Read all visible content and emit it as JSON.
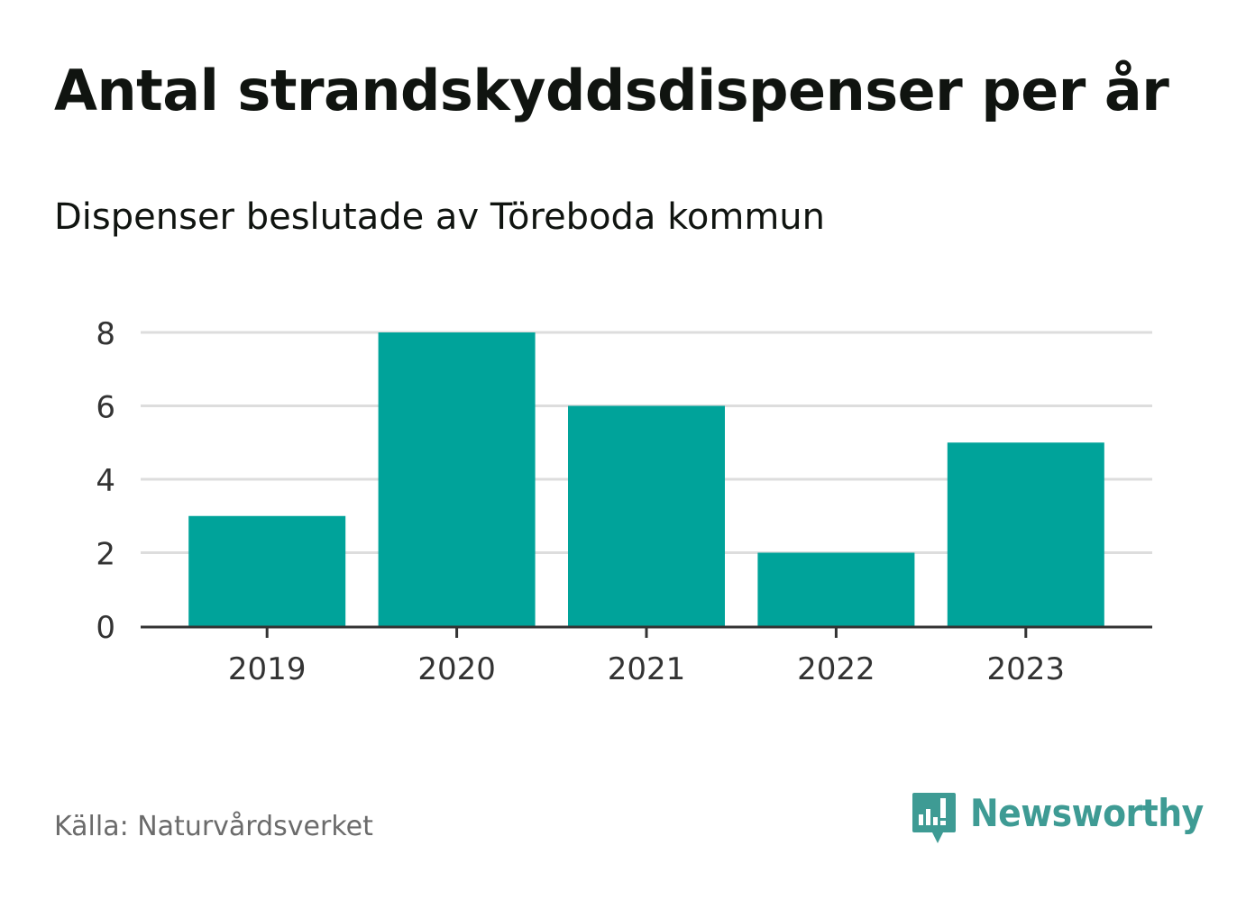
{
  "chart_data": {
    "type": "bar",
    "title": "Antal strandskyddsdispenser per år",
    "subtitle": "Dispenser beslutade av Töreboda kommun",
    "categories": [
      "2019",
      "2020",
      "2021",
      "2022",
      "2023"
    ],
    "values": [
      3,
      8,
      6,
      2,
      5
    ],
    "ylim": [
      0,
      8
    ],
    "yticks": [
      0,
      2,
      4,
      6,
      8
    ],
    "xlabel": "",
    "ylabel": "",
    "grid": true,
    "bar_color": "#00a39a"
  },
  "footer": {
    "source": "Källa: Naturvårdsverket",
    "brand": "Newsworthy"
  },
  "colors": {
    "brand": "#3e9b94",
    "grid": "#dddddd",
    "axis": "#333333",
    "text": "#101410",
    "muted": "#6b6b6b"
  },
  "icons": {
    "brand_logo": "newsworthy-logo-icon"
  }
}
